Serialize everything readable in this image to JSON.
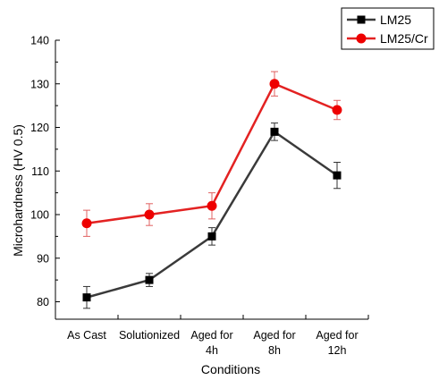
{
  "chart_data": {
    "type": "line",
    "categories": [
      "As Cast",
      "Solutionized",
      "Aged for 4h",
      "Aged for 8h",
      "Aged for 12h"
    ],
    "category_lines": [
      [
        "As Cast"
      ],
      [
        "Solutionized"
      ],
      [
        "Aged for",
        "4h"
      ],
      [
        "Aged for",
        "8h"
      ],
      [
        "Aged for",
        "12h"
      ]
    ],
    "xlabel": "Conditions",
    "ylabel": "Microhardness (HV 0.5)",
    "ylim": [
      76,
      140
    ],
    "yticks": [
      80,
      90,
      100,
      110,
      120,
      130,
      140
    ],
    "grid": false,
    "legend_position": "top-right",
    "series": [
      {
        "name": "LM25",
        "color": "#3a3a3a",
        "error_color": "#333333",
        "marker": "square",
        "values": [
          81,
          85,
          95,
          119,
          109
        ],
        "errors": [
          2.5,
          1.5,
          2.0,
          2.0,
          3.0
        ]
      },
      {
        "name": "LM25/Cr",
        "color": "#e32222",
        "error_color": "#e06060",
        "marker": "circle",
        "values": [
          98,
          100,
          102,
          130,
          124
        ],
        "errors": [
          3.0,
          2.5,
          3.0,
          2.8,
          2.2
        ]
      }
    ]
  }
}
